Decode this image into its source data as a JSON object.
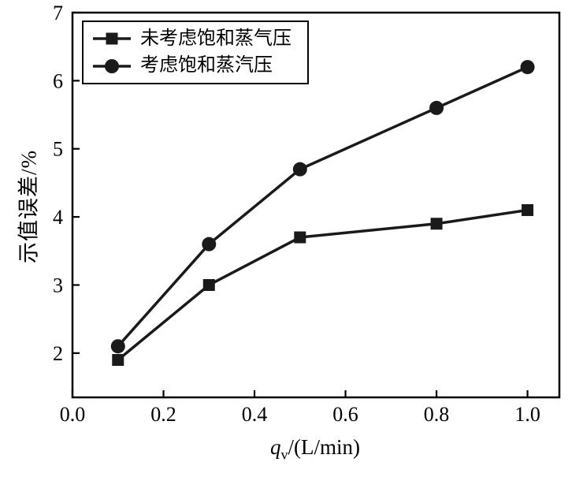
{
  "chart_data": {
    "type": "line",
    "title": "",
    "ylabel": "示值误差/%",
    "xlabel_var": "q",
    "xlabel_sub": "v",
    "xlabel_rest": "/(L/min)",
    "xlim": [
      0,
      1.07
    ],
    "ylim": [
      1.35,
      7
    ],
    "grid": false,
    "legend_position": "top-left",
    "line_color": "#1a1a1a",
    "xtick_values": [
      0.0,
      0.2,
      0.4,
      0.6,
      0.8,
      1.0
    ],
    "xtick_labels": [
      "0.0",
      "0.2",
      "0.4",
      "0.6",
      "0.8",
      "1.0"
    ],
    "ytick_values": [
      2,
      3,
      4,
      5,
      6,
      7
    ],
    "ytick_labels": [
      "2",
      "3",
      "4",
      "5",
      "6",
      "7"
    ],
    "x": [
      0.1,
      0.3,
      0.5,
      0.8,
      1.0
    ],
    "series": [
      {
        "name": "未考虑饱和蒸气压",
        "marker": "square",
        "values": [
          1.9,
          3.0,
          3.7,
          3.9,
          4.1
        ]
      },
      {
        "name": "考虑饱和蒸汽压",
        "marker": "circle",
        "values": [
          2.1,
          3.6,
          4.7,
          5.6,
          6.2
        ]
      }
    ]
  }
}
